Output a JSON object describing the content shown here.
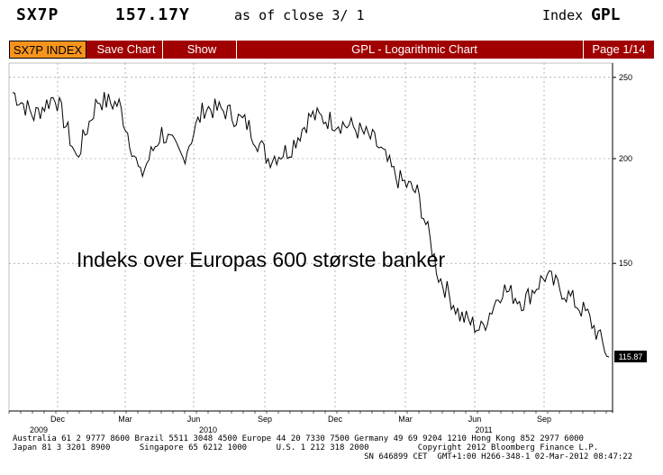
{
  "header": {
    "ticker": "SX7P",
    "price": "157.17Y",
    "as_of": "as of close  3/ 1",
    "index_label": "Index",
    "index_code": "GPL"
  },
  "toolbar": {
    "ticker_tab": "SX7P INDEX",
    "save_chart": "Save Chart",
    "show": "Show",
    "title": "GPL - Logarithmic Chart",
    "page": "Page 1/14",
    "colors": {
      "bar": "#a00000",
      "ticker_tab": "#f7941d"
    }
  },
  "chart_data": {
    "type": "line",
    "annotation": "Indeks over Europas 600 største banker",
    "y_scale": "log",
    "ylim": [
      100,
      260
    ],
    "y_ticks": [
      250,
      200,
      150
    ],
    "last_value_label": "115.87",
    "x_month_labels": [
      "Dec",
      "Mar",
      "Jun",
      "Sep",
      "Dec",
      "Mar",
      "Jun",
      "Sep"
    ],
    "x_year_labels": [
      "2009",
      "2010",
      "2011"
    ],
    "grid": true,
    "x": [
      "2009-11",
      "2009-12",
      "2010-01",
      "2010-02",
      "2010-03",
      "2010-04",
      "2010-05",
      "2010-06",
      "2010-07",
      "2010-08",
      "2010-09",
      "2010-10",
      "2010-11",
      "2010-12",
      "2011-01",
      "2011-02",
      "2011-03",
      "2011-04",
      "2011-05",
      "2011-06",
      "2011-07",
      "2011-08",
      "2011-09",
      "2011-10",
      "2011-11",
      "2011-12",
      "2012-01",
      "2012-02",
      "2012-03"
    ],
    "values": [
      240,
      225,
      238,
      200,
      235,
      232,
      190,
      215,
      200,
      230,
      228,
      220,
      200,
      205,
      225,
      222,
      218,
      210,
      190,
      182,
      145,
      130,
      125,
      140,
      135,
      145,
      138,
      130,
      116
    ]
  },
  "footer": {
    "line1": "Australia 61 2 9777 8600 Brazil 5511 3048 4500 Europe 44 20 7330 7500 Germany 49 69 9204 1210 Hong Kong 852 2977 6000",
    "line2": "Japan 81 3 3201 8900      Singapore 65 6212 1000      U.S. 1 212 318 2000          Copyright 2012 Bloomberg Finance L.P.",
    "line3": "                                                                        SN 646899 CET  GMT+1:00 H266-348-1 02-Mar-2012 08:47:22"
  }
}
